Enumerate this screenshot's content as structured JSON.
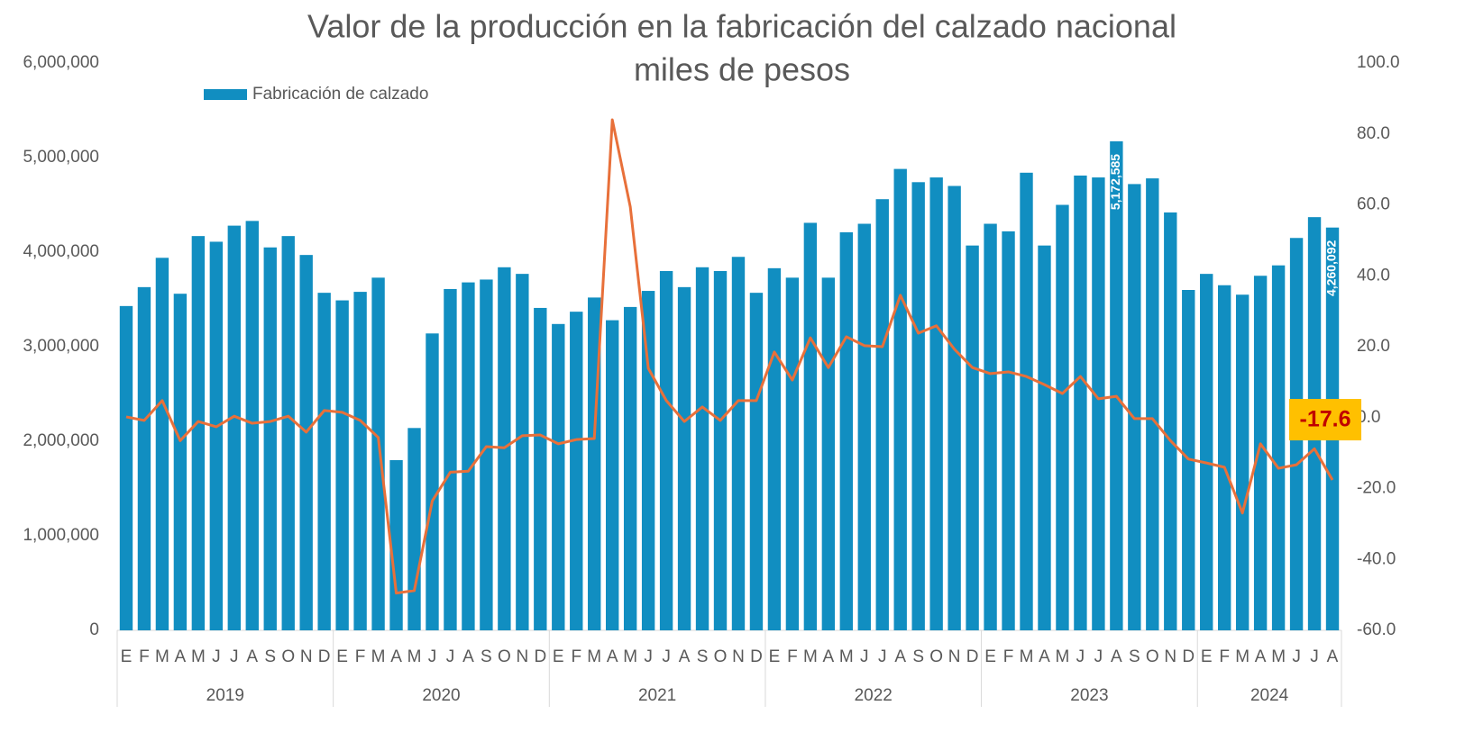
{
  "chart_data": {
    "type": "bar_line",
    "title": "Valor de la producción en la fabricación del calzado nacional",
    "subtitle": "miles de pesos",
    "legend": "top-left",
    "categories": [
      "E",
      "F",
      "M",
      "A",
      "M",
      "J",
      "J",
      "A",
      "S",
      "O",
      "N",
      "D",
      "E",
      "F",
      "M",
      "A",
      "M",
      "J",
      "J",
      "A",
      "S",
      "O",
      "N",
      "D",
      "E",
      "F",
      "M",
      "A",
      "M",
      "J",
      "J",
      "A",
      "S",
      "O",
      "N",
      "D",
      "E",
      "F",
      "M",
      "A",
      "M",
      "J",
      "J",
      "A",
      "S",
      "O",
      "N",
      "D",
      "E",
      "F",
      "M",
      "A",
      "M",
      "J",
      "J",
      "A",
      "S",
      "O",
      "N",
      "D",
      "E",
      "F",
      "M",
      "A",
      "M",
      "J",
      "J",
      "A"
    ],
    "years": [
      "2019",
      "2020",
      "2021",
      "2022",
      "2023",
      "2024"
    ],
    "series": [
      {
        "name": "Fabricación de calzado",
        "type": "bar",
        "color": "#118ec1",
        "values": [
          3430000,
          3630000,
          3940000,
          3560000,
          4170000,
          4110000,
          4280000,
          4330000,
          4050000,
          4170000,
          3970000,
          3570000,
          3490000,
          3580000,
          3730000,
          1800000,
          2140000,
          3140000,
          3610000,
          3680000,
          3710000,
          3840000,
          3770000,
          3410000,
          3240000,
          3370000,
          3520000,
          3280000,
          3420000,
          3590000,
          3800000,
          3630000,
          3840000,
          3800000,
          3950000,
          3570000,
          3830000,
          3730000,
          4310000,
          3730000,
          4210000,
          4300000,
          4560000,
          4880000,
          4740000,
          4790000,
          4700000,
          4070000,
          4300000,
          4220000,
          4840000,
          4070000,
          4500000,
          4810000,
          4790000,
          5172585,
          4720000,
          4780000,
          4420000,
          3600000,
          3770000,
          3650000,
          3550000,
          3750000,
          3860000,
          4150000,
          4370000,
          4260092
        ],
        "value_labels": [
          null,
          null,
          null,
          null,
          null,
          null,
          null,
          null,
          null,
          null,
          null,
          null,
          null,
          null,
          null,
          null,
          null,
          null,
          null,
          null,
          null,
          null,
          null,
          null,
          null,
          null,
          null,
          null,
          null,
          null,
          null,
          null,
          null,
          null,
          null,
          null,
          null,
          null,
          null,
          null,
          null,
          null,
          null,
          null,
          null,
          null,
          null,
          null,
          null,
          null,
          null,
          null,
          null,
          null,
          null,
          "5,172,585",
          null,
          null,
          null,
          null,
          null,
          null,
          null,
          null,
          null,
          null,
          null,
          "4,260,092"
        ]
      },
      {
        "type": "line",
        "axis": "y2",
        "color": "#e8703a",
        "values": [
          0.2,
          -0.8,
          4.8,
          -6.5,
          -1.1,
          -2.6,
          0.4,
          -1.6,
          -1.1,
          0.4,
          -4.1,
          2.0,
          1.5,
          -0.8,
          -5.6,
          -49.5,
          -48.8,
          -23.5,
          -15.4,
          -15.1,
          -8.2,
          -8.5,
          -5.1,
          -4.9,
          -7.4,
          -6.2,
          -5.9,
          84,
          59.4,
          13.9,
          4.8,
          -1.1,
          3.0,
          -0.8,
          4.8,
          4.8,
          18.5,
          10.6,
          22.5,
          14.1,
          22.8,
          20.3,
          20.0,
          34.5,
          23.8,
          25.9,
          19.3,
          14.1,
          12.4,
          12.9,
          11.6,
          9.3,
          6.8,
          11.6,
          5.3,
          6.0,
          -0.3,
          -0.3,
          -6.5,
          -11.7,
          -12.8,
          -14.0,
          -26.9,
          -7.4,
          -14.3,
          -13.3,
          -8.8,
          -17.6
        ],
        "value_labels": [
          null,
          null,
          null,
          null,
          null,
          null,
          null,
          null,
          null,
          null,
          null,
          null,
          null,
          null,
          null,
          null,
          null,
          null,
          null,
          null,
          null,
          null,
          null,
          null,
          null,
          null,
          null,
          null,
          null,
          null,
          null,
          null,
          null,
          null,
          null,
          null,
          null,
          null,
          null,
          null,
          null,
          null,
          null,
          null,
          null,
          null,
          null,
          null,
          null,
          null,
          null,
          null,
          null,
          null,
          null,
          null,
          null,
          null,
          null,
          null,
          null,
          null,
          null,
          null,
          null,
          null,
          null,
          "-17.6"
        ]
      }
    ],
    "ylim": [
      0,
      6000000
    ],
    "yticks": [
      0,
      {
        "value": 1000000,
        "label": "1,000,000"
      },
      {
        "value": 2000000,
        "label": "2,000,000"
      },
      {
        "value": 3000000,
        "label": "3,000,000"
      },
      {
        "value": 4000000,
        "label": "4,000,000"
      },
      {
        "value": 5000000,
        "label": "5,000,000"
      },
      {
        "value": 6000000,
        "label": "6,000,000"
      }
    ],
    "y2lim": [
      -60,
      100
    ],
    "y2ticks": [
      {
        "value": -60,
        "label": "-60.0"
      },
      {
        "value": -40,
        "label": "-40.0"
      },
      {
        "value": -20,
        "label": "-20.0"
      },
      {
        "value": 0,
        "label": "0.0"
      },
      {
        "value": 20,
        "label": "20.0"
      },
      {
        "value": 40,
        "label": "40.0"
      },
      {
        "value": 60,
        "label": "60.0"
      },
      {
        "value": 80,
        "label": "80.0"
      },
      {
        "value": 100,
        "label": "100.0"
      }
    ],
    "grid": false
  }
}
